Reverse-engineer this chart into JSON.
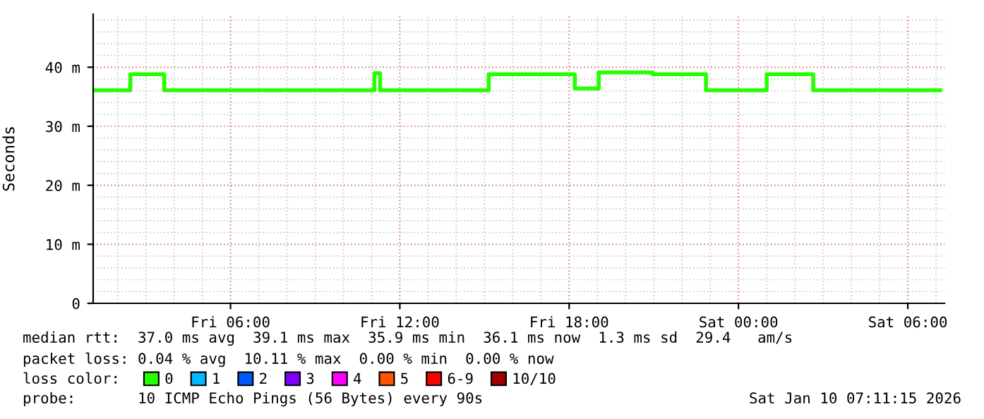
{
  "chart_data": {
    "type": "step",
    "ylabel": "Seconds",
    "legend_title": "loss color:",
    "x": [
      "2026-01-09T01:09",
      "2026-01-09T02:27",
      "2026-01-09T03:39",
      "2026-01-09T11:06",
      "2026-01-09T11:18",
      "2026-01-09T15:09",
      "2026-01-09T18:12",
      "2026-01-09T19:03",
      "2026-01-09T20:57",
      "2026-01-09T22:51",
      "2026-01-10T01:00",
      "2026-01-10T02:39",
      "2026-01-10T07:09"
    ],
    "series": [
      {
        "name": "0",
        "color": "#26ff00",
        "values": [
          36.1,
          38.8,
          36.1,
          39.0,
          36.1,
          38.8,
          36.4,
          39.1,
          38.8,
          36.1,
          38.8,
          36.1,
          36.1
        ]
      },
      {
        "name": "1",
        "color": "#00b8ff",
        "values": [
          null,
          null,
          null,
          null,
          null,
          null,
          null,
          null,
          null,
          null,
          null,
          null,
          null
        ]
      },
      {
        "name": "2",
        "color": "#0059ff",
        "values": [
          null,
          null,
          null,
          null,
          null,
          null,
          null,
          null,
          null,
          null,
          null,
          null,
          null
        ]
      },
      {
        "name": "3",
        "color": "#7e00ff",
        "values": [
          null,
          null,
          null,
          null,
          null,
          null,
          null,
          null,
          null,
          null,
          null,
          null,
          null
        ]
      },
      {
        "name": "4",
        "color": "#ff00ff",
        "values": [
          null,
          null,
          null,
          null,
          null,
          null,
          null,
          null,
          null,
          null,
          null,
          null,
          null
        ]
      },
      {
        "name": "5",
        "color": "#ff5500",
        "values": [
          null,
          null,
          null,
          null,
          null,
          null,
          null,
          null,
          null,
          null,
          null,
          null,
          null
        ]
      },
      {
        "name": "6-9",
        "color": "#ff0000",
        "values": [
          null,
          null,
          null,
          null,
          null,
          null,
          null,
          null,
          null,
          null,
          null,
          null,
          null
        ]
      },
      {
        "name": "10/10",
        "color": "#a10000",
        "values": [
          null,
          null,
          null,
          null,
          null,
          null,
          null,
          null,
          null,
          null,
          null,
          null,
          null
        ]
      }
    ],
    "xlim": [
      "2026-01-09T01:08",
      "2026-01-10T07:18"
    ],
    "xticks": [
      {
        "value": "2026-01-09T06:00",
        "label": "Fri 06:00"
      },
      {
        "value": "2026-01-09T12:00",
        "label": "Fri 12:00"
      },
      {
        "value": "2026-01-09T18:00",
        "label": "Fri 18:00"
      },
      {
        "value": "2026-01-10T00:00",
        "label": "Sat 00:00"
      },
      {
        "value": "2026-01-10T06:00",
        "label": "Sat 06:00"
      }
    ],
    "ylim": [
      0,
      49
    ],
    "yticks": [
      0,
      {
        "value": 10,
        "label": "10 m"
      },
      {
        "value": 20,
        "label": "20 m"
      },
      {
        "value": 30,
        "label": "30 m"
      },
      {
        "value": 40,
        "label": "40 m"
      }
    ],
    "grid": true,
    "legend": "bottom",
    "annotations": [
      "median rtt:  37.0 ms avg  39.1 ms max  35.9 ms min  36.1 ms now  1.3 ms sd  29.4   am/s",
      "packet loss: 0.04 % avg  10.11 % max  0.00 % min  0.00 % now",
      "probe:       10 ICMP Echo Pings (56 Bytes) every 90s",
      "Sat Jan 10 07:11:15 2026"
    ]
  }
}
